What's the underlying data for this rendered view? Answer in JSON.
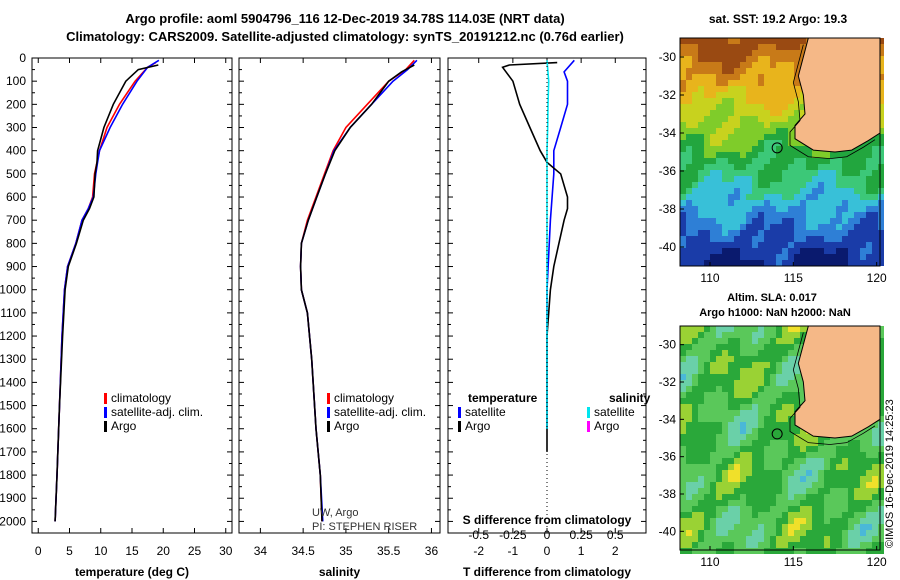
{
  "title_line1": "Argo profile: aoml 5904796_116 12-Dec-2019 34.78S 114.03E (NRT data)",
  "title_line2": "Climatology: CARS2009. Satellite-adjusted climatology: synTS_20191212.nc (0.76d earlier)",
  "credit": "UW, Argo",
  "pi": "PI: STEPHEN RISER",
  "imos": "©IMOS 16-Dec-2019 14:25:23",
  "sst_title": "sat. SST: 19.2 Argo: 19.3",
  "sla_title1": "Altim. SLA: 0.017",
  "sla_title2": "Argo h1000: NaN h2000: NaN",
  "colors": {
    "climatology": "#ff0000",
    "satellite": "#0000ff",
    "argo": "#000000",
    "s_satellite": "#00e5ee",
    "s_argo": "#ff00ff",
    "land": "#f5b887"
  },
  "chart_data": [
    {
      "type": "line",
      "xlabel": "temperature (deg C)",
      "x_ticks": [
        "0",
        "5",
        "10",
        "15",
        "20",
        "25",
        "30"
      ],
      "xlim": [
        -1,
        31
      ],
      "y_ticks": [
        "0",
        "100",
        "200",
        "300",
        "400",
        "500",
        "600",
        "700",
        "800",
        "900",
        "1000",
        "1100",
        "1200",
        "1300",
        "1400",
        "1500",
        "1600",
        "1700",
        "1800",
        "1900",
        "2000"
      ],
      "ylim": [
        2050,
        0
      ],
      "legend": [
        "climatology",
        "satellite-adj. clim.",
        "Argo"
      ],
      "series": [
        {
          "name": "climatology",
          "color": "#ff0000",
          "points": [
            [
              18.8,
              20
            ],
            [
              17.5,
              40
            ],
            [
              15.5,
              100
            ],
            [
              13,
              200
            ],
            [
              11,
              300
            ],
            [
              9.8,
              400
            ],
            [
              9.4,
              450
            ],
            [
              9,
              500
            ],
            [
              8.7,
              600
            ],
            [
              8,
              650
            ],
            [
              7,
              700
            ],
            [
              6,
              800
            ],
            [
              4.7,
              900
            ],
            [
              4.2,
              1000
            ],
            [
              3.8,
              1200
            ],
            [
              3.4,
              1500
            ],
            [
              3,
              1800
            ],
            [
              2.7,
              2000
            ]
          ]
        },
        {
          "name": "satellite-adj. clim.",
          "color": "#0000ff",
          "points": [
            [
              19.3,
              10
            ],
            [
              17.5,
              40
            ],
            [
              15.8,
              100
            ],
            [
              13.5,
              200
            ],
            [
              11.5,
              300
            ],
            [
              9.8,
              400
            ],
            [
              9.5,
              450
            ],
            [
              9.2,
              500
            ],
            [
              8.8,
              600
            ],
            [
              8,
              650
            ],
            [
              7,
              700
            ],
            [
              6,
              800
            ],
            [
              4.7,
              900
            ],
            [
              4.2,
              1000
            ],
            [
              3.8,
              1200
            ],
            [
              3.4,
              1500
            ],
            [
              3,
              1800
            ],
            [
              2.7,
              2000
            ]
          ]
        },
        {
          "name": "Argo",
          "color": "#000000",
          "points": [
            [
              19.2,
              30
            ],
            [
              16,
              50
            ],
            [
              14,
              100
            ],
            [
              12,
              200
            ],
            [
              10.5,
              300
            ],
            [
              9.5,
              400
            ],
            [
              9.4,
              450
            ],
            [
              9.1,
              500
            ],
            [
              8.9,
              600
            ],
            [
              8.2,
              650
            ],
            [
              7.2,
              700
            ],
            [
              6.1,
              800
            ],
            [
              4.8,
              900
            ],
            [
              4.3,
              1000
            ],
            [
              3.9,
              1200
            ],
            [
              3.4,
              1500
            ],
            [
              3,
              1800
            ],
            [
              2.7,
              2000
            ]
          ]
        }
      ]
    },
    {
      "type": "line",
      "xlabel": "salinity",
      "x_ticks": [
        "34",
        "34.5",
        "35",
        "35.5",
        "36"
      ],
      "xlim": [
        33.75,
        36.1
      ],
      "ylim": [
        2050,
        0
      ],
      "legend": [
        "climatology",
        "satellite-adj. clim.",
        "Argo"
      ],
      "series": [
        {
          "name": "climatology",
          "color": "#ff0000",
          "points": [
            [
              35.8,
              10
            ],
            [
              35.7,
              50
            ],
            [
              35.5,
              100
            ],
            [
              35.25,
              200
            ],
            [
              35,
              300
            ],
            [
              34.85,
              400
            ],
            [
              34.75,
              500
            ],
            [
              34.65,
              600
            ],
            [
              34.55,
              700
            ],
            [
              34.48,
              800
            ],
            [
              34.47,
              900
            ],
            [
              34.48,
              1000
            ],
            [
              34.55,
              1100
            ],
            [
              34.6,
              1300
            ],
            [
              34.65,
              1600
            ],
            [
              34.7,
              1800
            ],
            [
              34.72,
              2000
            ]
          ]
        },
        {
          "name": "satellite-adj. clim.",
          "color": "#0000ff",
          "points": [
            [
              35.83,
              10
            ],
            [
              35.72,
              50
            ],
            [
              35.55,
              100
            ],
            [
              35.3,
              200
            ],
            [
              35.05,
              300
            ],
            [
              34.86,
              400
            ],
            [
              34.76,
              500
            ],
            [
              34.66,
              600
            ],
            [
              34.56,
              700
            ],
            [
              34.48,
              800
            ],
            [
              34.47,
              900
            ],
            [
              34.48,
              1000
            ],
            [
              34.55,
              1100
            ],
            [
              34.6,
              1300
            ],
            [
              34.65,
              1600
            ],
            [
              34.7,
              1800
            ],
            [
              34.73,
              2000
            ]
          ]
        },
        {
          "name": "Argo",
          "color": "#000000",
          "points": [
            [
              35.8,
              30
            ],
            [
              35.65,
              60
            ],
            [
              35.5,
              100
            ],
            [
              35.3,
              200
            ],
            [
              35.05,
              300
            ],
            [
              34.87,
              400
            ],
            [
              34.76,
              500
            ],
            [
              34.66,
              600
            ],
            [
              34.56,
              700
            ],
            [
              34.48,
              800
            ],
            [
              34.47,
              900
            ],
            [
              34.48,
              1000
            ],
            [
              34.55,
              1100
            ],
            [
              34.6,
              1300
            ],
            [
              34.65,
              1600
            ],
            [
              34.7,
              1800
            ],
            [
              34.72,
              2000
            ]
          ]
        }
      ]
    },
    {
      "type": "line",
      "xlabel": "T difference from climatology",
      "x_ticks": [
        "-2",
        "-1",
        "0",
        "1",
        "2"
      ],
      "xlim": [
        -2.9,
        2.9
      ],
      "s_label": "S difference from climatology",
      "s_ticks": [
        "-0.5",
        "-0.25",
        "0",
        "0.25",
        "0.5"
      ],
      "slim": [
        -0.725,
        0.725
      ],
      "ylim": [
        2050,
        0
      ],
      "legend_left_title": "temperature",
      "legend_right_title": "salinity",
      "legend_left": [
        "satellite",
        "Argo"
      ],
      "legend_right": [
        "satellite",
        "Argo"
      ],
      "series": [
        {
          "name": "T satellite",
          "color": "#0000ff",
          "points": [
            [
              0.8,
              10
            ],
            [
              0.5,
              60
            ],
            [
              0.6,
              100
            ],
            [
              0.6,
              200
            ],
            [
              0.4,
              300
            ],
            [
              0.2,
              400
            ],
            [
              0.2,
              500
            ],
            [
              0.1,
              700
            ],
            [
              0,
              1000
            ],
            [
              0,
              1500
            ],
            [
              0,
              1600
            ]
          ]
        },
        {
          "name": "T Argo",
          "color": "#000000",
          "points": [
            [
              0.3,
              20
            ],
            [
              -1.1,
              30
            ],
            [
              -1.3,
              40
            ],
            [
              -1,
              100
            ],
            [
              -0.8,
              200
            ],
            [
              -0.5,
              300
            ],
            [
              -0.2,
              400
            ],
            [
              0,
              450
            ],
            [
              0.4,
              500
            ],
            [
              0.6,
              600
            ],
            [
              0.6,
              650
            ],
            [
              0.5,
              700
            ],
            [
              0.35,
              800
            ],
            [
              0.2,
              900
            ],
            [
              0.1,
              1000
            ],
            [
              0,
              1200
            ],
            [
              0,
              1500
            ],
            [
              0,
              1700
            ]
          ]
        },
        {
          "name": "S satellite",
          "color": "#00e5ee",
          "points": [
            [
              0,
              10
            ],
            [
              0.05,
              100
            ],
            [
              0.03,
              200
            ],
            [
              0.02,
              300
            ],
            [
              0,
              400
            ],
            [
              0,
              600
            ],
            [
              0,
              800
            ],
            [
              0,
              1000
            ],
            [
              0,
              1300
            ],
            [
              0,
              1600
            ]
          ]
        }
      ]
    }
  ],
  "maps": [
    {
      "name": "sst-map",
      "x_ticks": [
        "110",
        "115",
        "120"
      ],
      "y_ticks": [
        "-30",
        "-32",
        "-34",
        "-36",
        "-38",
        "-40"
      ]
    },
    {
      "name": "sla-map",
      "x_ticks": [
        "110",
        "115",
        "120"
      ],
      "y_ticks": [
        "-30",
        "-32",
        "-34",
        "-36",
        "-38",
        "-40"
      ]
    }
  ]
}
